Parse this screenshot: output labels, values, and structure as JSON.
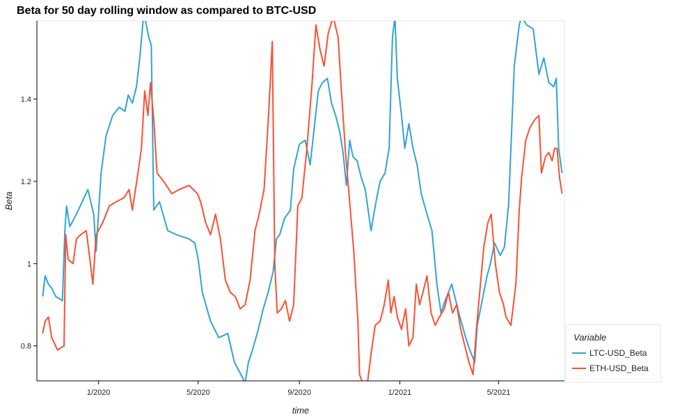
{
  "chart_data": {
    "type": "line",
    "title": "Beta for 50 day rolling window as compared to BTC-USD",
    "xlabel": "time",
    "ylabel": "Beta",
    "ylim": [
      0.715,
      1.59
    ],
    "xlim": [
      "2019-10-18",
      "2021-07-20"
    ],
    "grid": false,
    "legend": {
      "title": "Variable",
      "placement": "right-bottom"
    },
    "y_ticks": [
      {
        "value": 0.8,
        "label": "0.8"
      },
      {
        "value": 1.0,
        "label": "1"
      },
      {
        "value": 1.2,
        "label": "1.2"
      },
      {
        "value": 1.4,
        "label": "1.4"
      }
    ],
    "x_ticks": [
      {
        "value": "2020-01-01",
        "label": "1/2020"
      },
      {
        "value": "2020-05-01",
        "label": "5/2020"
      },
      {
        "value": "2020-09-01",
        "label": "9/2020"
      },
      {
        "value": "2021-01-01",
        "label": "1/2021"
      },
      {
        "value": "2021-05-01",
        "label": "5/2021"
      }
    ],
    "series": [
      {
        "name": "LTC-USD_Beta",
        "color": "#30a2da",
        "points": [
          [
            "2019-10-25",
            0.92
          ],
          [
            "2019-10-28",
            0.97
          ],
          [
            "2019-11-01",
            0.95
          ],
          [
            "2019-11-05",
            0.94
          ],
          [
            "2019-11-10",
            0.92
          ],
          [
            "2019-11-18",
            0.91
          ],
          [
            "2019-11-21",
            1.08
          ],
          [
            "2019-11-23",
            1.14
          ],
          [
            "2019-11-27",
            1.09
          ],
          [
            "2019-12-05",
            1.12
          ],
          [
            "2019-12-12",
            1.15
          ],
          [
            "2019-12-19",
            1.18
          ],
          [
            "2019-12-26",
            1.12
          ],
          [
            "2019-12-29",
            1.03
          ],
          [
            "2020-01-04",
            1.22
          ],
          [
            "2020-01-10",
            1.31
          ],
          [
            "2020-01-18",
            1.36
          ],
          [
            "2020-01-26",
            1.38
          ],
          [
            "2020-02-02",
            1.37
          ],
          [
            "2020-02-06",
            1.41
          ],
          [
            "2020-02-11",
            1.39
          ],
          [
            "2020-02-16",
            1.43
          ],
          [
            "2020-02-20",
            1.5
          ],
          [
            "2020-02-25",
            1.61
          ],
          [
            "2020-03-02",
            1.55
          ],
          [
            "2020-03-05",
            1.53
          ],
          [
            "2020-03-08",
            1.13
          ],
          [
            "2020-03-15",
            1.15
          ],
          [
            "2020-03-25",
            1.08
          ],
          [
            "2020-04-05",
            1.07
          ],
          [
            "2020-04-20",
            1.06
          ],
          [
            "2020-04-27",
            1.05
          ],
          [
            "2020-05-01",
            1.01
          ],
          [
            "2020-05-06",
            0.93
          ],
          [
            "2020-05-16",
            0.86
          ],
          [
            "2020-05-26",
            0.82
          ],
          [
            "2020-06-06",
            0.83
          ],
          [
            "2020-06-14",
            0.76
          ],
          [
            "2020-06-22",
            0.73
          ],
          [
            "2020-06-27",
            0.71
          ],
          [
            "2020-07-01",
            0.76
          ],
          [
            "2020-07-06",
            0.79
          ],
          [
            "2020-07-13",
            0.84
          ],
          [
            "2020-07-19",
            0.89
          ],
          [
            "2020-07-25",
            0.93
          ],
          [
            "2020-07-31",
            0.98
          ],
          [
            "2020-08-04",
            1.06
          ],
          [
            "2020-08-08",
            1.07
          ],
          [
            "2020-08-14",
            1.11
          ],
          [
            "2020-08-21",
            1.13
          ],
          [
            "2020-08-25",
            1.23
          ],
          [
            "2020-09-01",
            1.29
          ],
          [
            "2020-09-08",
            1.3
          ],
          [
            "2020-09-14",
            1.24
          ],
          [
            "2020-09-19",
            1.33
          ],
          [
            "2020-09-24",
            1.42
          ],
          [
            "2020-09-29",
            1.44
          ],
          [
            "2020-10-05",
            1.45
          ],
          [
            "2020-10-10",
            1.39
          ],
          [
            "2020-10-15",
            1.36
          ],
          [
            "2020-10-20",
            1.32
          ],
          [
            "2020-10-24",
            1.27
          ],
          [
            "2020-10-28",
            1.19
          ],
          [
            "2020-11-01",
            1.3
          ],
          [
            "2020-11-05",
            1.26
          ],
          [
            "2020-11-10",
            1.25
          ],
          [
            "2020-11-15",
            1.21
          ],
          [
            "2020-11-20",
            1.18
          ],
          [
            "2020-11-27",
            1.08
          ],
          [
            "2020-12-03",
            1.15
          ],
          [
            "2020-12-08",
            1.2
          ],
          [
            "2020-12-14",
            1.22
          ],
          [
            "2020-12-19",
            1.28
          ],
          [
            "2020-12-23",
            1.55
          ],
          [
            "2020-12-26",
            1.6
          ],
          [
            "2020-12-29",
            1.45
          ],
          [
            "2021-01-03",
            1.36
          ],
          [
            "2021-01-07",
            1.28
          ],
          [
            "2021-01-12",
            1.34
          ],
          [
            "2021-01-17",
            1.28
          ],
          [
            "2021-01-22",
            1.24
          ],
          [
            "2021-01-27",
            1.17
          ],
          [
            "2021-02-03",
            1.12
          ],
          [
            "2021-02-09",
            1.08
          ],
          [
            "2021-02-15",
            0.95
          ],
          [
            "2021-02-20",
            0.88
          ],
          [
            "2021-02-25",
            0.91
          ],
          [
            "2021-03-05",
            0.95
          ],
          [
            "2021-03-15",
            0.87
          ],
          [
            "2021-03-22",
            0.82
          ],
          [
            "2021-03-27",
            0.79
          ],
          [
            "2021-04-02",
            0.76
          ],
          [
            "2021-04-05",
            0.85
          ],
          [
            "2021-04-12",
            0.92
          ],
          [
            "2021-04-17",
            0.97
          ],
          [
            "2021-04-21",
            1.0
          ],
          [
            "2021-04-26",
            1.05
          ],
          [
            "2021-05-03",
            1.02
          ],
          [
            "2021-05-08",
            1.04
          ],
          [
            "2021-05-13",
            1.14
          ],
          [
            "2021-05-16",
            1.28
          ],
          [
            "2021-05-20",
            1.48
          ],
          [
            "2021-05-26",
            1.58
          ],
          [
            "2021-05-29",
            1.6
          ],
          [
            "2021-06-04",
            1.58
          ],
          [
            "2021-06-12",
            1.57
          ],
          [
            "2021-06-19",
            1.46
          ],
          [
            "2021-06-25",
            1.5
          ],
          [
            "2021-07-01",
            1.44
          ],
          [
            "2021-07-07",
            1.43
          ],
          [
            "2021-07-10",
            1.45
          ],
          [
            "2021-07-13",
            1.28
          ],
          [
            "2021-07-17",
            1.22
          ]
        ]
      },
      {
        "name": "ETH-USD_Beta",
        "color": "#fc4f30",
        "points": [
          [
            "2019-10-25",
            0.83
          ],
          [
            "2019-10-28",
            0.86
          ],
          [
            "2019-11-01",
            0.87
          ],
          [
            "2019-11-05",
            0.82
          ],
          [
            "2019-11-12",
            0.79
          ],
          [
            "2019-11-20",
            0.8
          ],
          [
            "2019-11-22",
            1.07
          ],
          [
            "2019-11-25",
            1.01
          ],
          [
            "2019-12-01",
            1.0
          ],
          [
            "2019-12-05",
            1.06
          ],
          [
            "2019-12-10",
            1.07
          ],
          [
            "2019-12-17",
            1.08
          ],
          [
            "2019-12-22",
            1.0
          ],
          [
            "2019-12-25",
            0.95
          ],
          [
            "2019-12-29",
            1.07
          ],
          [
            "2020-01-06",
            1.1
          ],
          [
            "2020-01-14",
            1.14
          ],
          [
            "2020-01-22",
            1.15
          ],
          [
            "2020-02-01",
            1.16
          ],
          [
            "2020-02-07",
            1.18
          ],
          [
            "2020-02-11",
            1.13
          ],
          [
            "2020-02-17",
            1.21
          ],
          [
            "2020-02-22",
            1.28
          ],
          [
            "2020-02-26",
            1.42
          ],
          [
            "2020-03-01",
            1.36
          ],
          [
            "2020-03-04",
            1.44
          ],
          [
            "2020-03-08",
            1.35
          ],
          [
            "2020-03-12",
            1.22
          ],
          [
            "2020-03-20",
            1.2
          ],
          [
            "2020-03-30",
            1.17
          ],
          [
            "2020-04-08",
            1.18
          ],
          [
            "2020-04-20",
            1.19
          ],
          [
            "2020-04-30",
            1.17
          ],
          [
            "2020-05-04",
            1.15
          ],
          [
            "2020-05-10",
            1.1
          ],
          [
            "2020-05-16",
            1.07
          ],
          [
            "2020-05-22",
            1.12
          ],
          [
            "2020-05-28",
            1.06
          ],
          [
            "2020-06-03",
            0.96
          ],
          [
            "2020-06-09",
            0.93
          ],
          [
            "2020-06-15",
            0.92
          ],
          [
            "2020-06-21",
            0.89
          ],
          [
            "2020-06-27",
            0.9
          ],
          [
            "2020-07-03",
            0.96
          ],
          [
            "2020-07-09",
            1.08
          ],
          [
            "2020-07-14",
            1.12
          ],
          [
            "2020-07-20",
            1.18
          ],
          [
            "2020-07-26",
            1.38
          ],
          [
            "2020-07-30",
            1.54
          ],
          [
            "2020-08-02",
            1.0
          ],
          [
            "2020-08-05",
            0.88
          ],
          [
            "2020-08-10",
            0.89
          ],
          [
            "2020-08-15",
            0.91
          ],
          [
            "2020-08-20",
            0.86
          ],
          [
            "2020-08-25",
            0.9
          ],
          [
            "2020-08-30",
            1.14
          ],
          [
            "2020-09-04",
            1.16
          ],
          [
            "2020-09-10",
            1.28
          ],
          [
            "2020-09-16",
            1.43
          ],
          [
            "2020-09-21",
            1.58
          ],
          [
            "2020-09-26",
            1.52
          ],
          [
            "2020-10-01",
            1.48
          ],
          [
            "2020-10-06",
            1.56
          ],
          [
            "2020-10-12",
            1.6
          ],
          [
            "2020-10-18",
            1.55
          ],
          [
            "2020-10-22",
            1.42
          ],
          [
            "2020-10-27",
            1.27
          ],
          [
            "2020-11-01",
            1.15
          ],
          [
            "2020-11-06",
            1.03
          ],
          [
            "2020-11-11",
            0.86
          ],
          [
            "2020-11-13",
            0.73
          ],
          [
            "2020-11-17",
            0.71
          ],
          [
            "2020-11-22",
            0.7
          ],
          [
            "2020-11-27",
            0.78
          ],
          [
            "2020-12-02",
            0.85
          ],
          [
            "2020-12-08",
            0.86
          ],
          [
            "2020-12-13",
            0.9
          ],
          [
            "2020-12-18",
            0.96
          ],
          [
            "2020-12-21",
            0.88
          ],
          [
            "2020-12-25",
            0.92
          ],
          [
            "2020-12-29",
            0.87
          ],
          [
            "2021-01-03",
            0.84
          ],
          [
            "2021-01-08",
            0.89
          ],
          [
            "2021-01-12",
            0.8
          ],
          [
            "2021-01-17",
            0.82
          ],
          [
            "2021-01-21",
            0.95
          ],
          [
            "2021-01-25",
            0.9
          ],
          [
            "2021-01-29",
            0.93
          ],
          [
            "2021-02-03",
            0.97
          ],
          [
            "2021-02-08",
            0.88
          ],
          [
            "2021-02-13",
            0.85
          ],
          [
            "2021-02-18",
            0.87
          ],
          [
            "2021-02-24",
            0.89
          ],
          [
            "2021-03-01",
            0.93
          ],
          [
            "2021-03-06",
            0.88
          ],
          [
            "2021-03-11",
            0.9
          ],
          [
            "2021-03-16",
            0.84
          ],
          [
            "2021-03-21",
            0.8
          ],
          [
            "2021-03-26",
            0.76
          ],
          [
            "2021-03-31",
            0.73
          ],
          [
            "2021-04-04",
            0.84
          ],
          [
            "2021-04-08",
            0.93
          ],
          [
            "2021-04-13",
            1.04
          ],
          [
            "2021-04-18",
            1.1
          ],
          [
            "2021-04-22",
            1.12
          ],
          [
            "2021-04-27",
            1.0
          ],
          [
            "2021-05-02",
            0.93
          ],
          [
            "2021-05-07",
            0.9
          ],
          [
            "2021-05-10",
            0.87
          ],
          [
            "2021-05-16",
            0.85
          ],
          [
            "2021-05-22",
            0.95
          ],
          [
            "2021-05-26",
            1.13
          ],
          [
            "2021-05-29",
            1.21
          ],
          [
            "2021-06-03",
            1.3
          ],
          [
            "2021-06-08",
            1.33
          ],
          [
            "2021-06-14",
            1.35
          ],
          [
            "2021-06-19",
            1.36
          ],
          [
            "2021-06-22",
            1.22
          ],
          [
            "2021-06-27",
            1.26
          ],
          [
            "2021-07-01",
            1.27
          ],
          [
            "2021-07-05",
            1.25
          ],
          [
            "2021-07-08",
            1.28
          ],
          [
            "2021-07-11",
            1.28
          ],
          [
            "2021-07-14",
            1.21
          ],
          [
            "2021-07-17",
            1.17
          ]
        ]
      }
    ]
  }
}
